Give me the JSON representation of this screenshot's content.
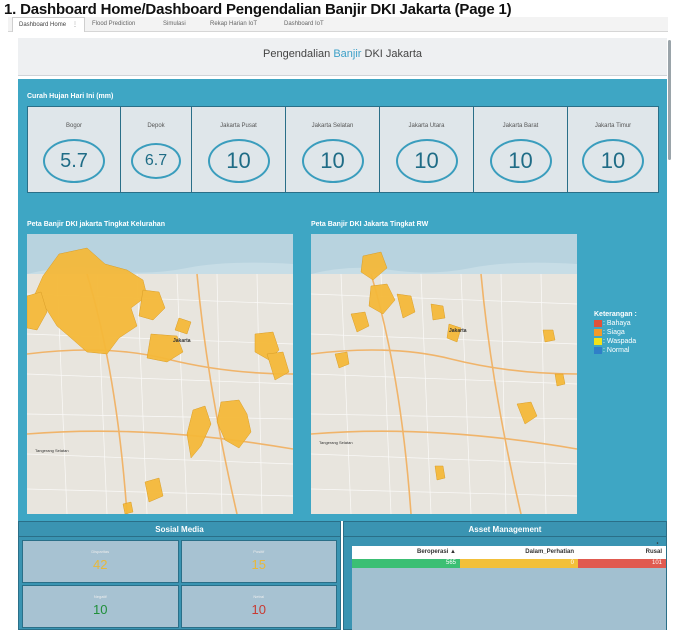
{
  "document_title": "1. Dashboard Home/Dashboard Pengendalian Banjir DKI Jakarta (Page 1)",
  "tabs": [
    {
      "label": "Dashboard Home",
      "menu": "⋮",
      "active": true
    },
    {
      "label": "Flood Prediction",
      "active": false
    },
    {
      "label": "Simulasi",
      "active": false
    },
    {
      "label": "Rekap Harian IoT",
      "active": false
    },
    {
      "label": "Dashboard IoT",
      "active": false
    }
  ],
  "header": {
    "title_pre": "Pengendalian ",
    "title_accent": "Banjir",
    "title_post": " DKI Jakarta"
  },
  "rainfall": {
    "label": "Curah Hujan Hari Ini (mm)",
    "stations": [
      {
        "name": "Bogor",
        "value": "5.7"
      },
      {
        "name": "Depok",
        "value": "6.7"
      },
      {
        "name": "Jakarta Pusat",
        "value": "10"
      },
      {
        "name": "Jakarta Selatan",
        "value": "10"
      },
      {
        "name": "Jakarta Utara",
        "value": "10"
      },
      {
        "name": "Jakarta Barat",
        "value": "10"
      },
      {
        "name": "Jakarta Timur",
        "value": "10"
      }
    ]
  },
  "maps": {
    "left": {
      "title": "Peta Banjir DKI jakarta Tingkat Kelurahan",
      "city_label": "Jakarta",
      "town_label": "Tangerang Selatan"
    },
    "right": {
      "title": "Peta Banjir DKI Jakarta Tingkat RW",
      "city_label": "Jakarta",
      "town_label": "Tangerang Selatan"
    }
  },
  "legend": {
    "title": "Keterangan :",
    "items": [
      {
        "label": ": Bahaya",
        "color": "#e0523a"
      },
      {
        "label": ": Siaga",
        "color": "#f29a2a"
      },
      {
        "label": ": Waspada",
        "color": "#f2e21a"
      },
      {
        "label": ": Normal",
        "color": "#2f7fc8"
      }
    ]
  },
  "social_media": {
    "title": "Sosial Media",
    "cards": [
      {
        "label": "Disparitas",
        "value": "42",
        "color": "#e8b83a"
      },
      {
        "label": "Positif",
        "value": "15",
        "color": "#e8b83a"
      },
      {
        "label": "Negatif",
        "value": "10",
        "color": "#1f8f3a"
      },
      {
        "label": "Netral",
        "value": "10",
        "color": "#c83a32"
      }
    ]
  },
  "asset_management": {
    "title": "Asset Management",
    "columns": [
      {
        "label": "Beroperasi ▲",
        "value": "565",
        "color": "#3bbf74"
      },
      {
        "label": "Dalam_Perhatian",
        "value": "0",
        "color": "#f2c03a"
      },
      {
        "label": "Rusal",
        "value": "101",
        "color": "#e05a50"
      }
    ],
    "more_label": "⋮"
  }
}
